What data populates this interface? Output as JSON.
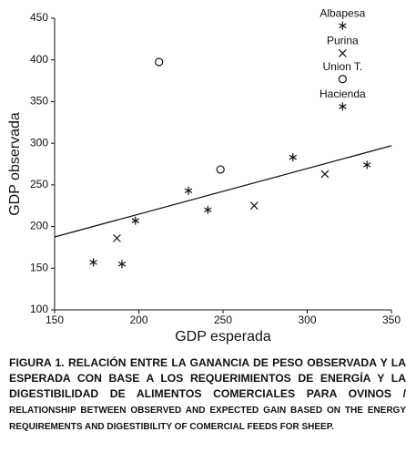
{
  "chart_data": {
    "type": "scatter",
    "xlabel": "GDP esperada",
    "ylabel": "GDP observada",
    "xlim": [
      150,
      350
    ],
    "xticks": [
      150,
      200,
      250,
      300,
      350
    ],
    "ylim": [
      100,
      450
    ],
    "yticks": [
      100,
      150,
      200,
      250,
      300,
      350,
      400,
      450
    ],
    "color": "#111111",
    "series": [
      {
        "marker": "asterisk",
        "x": [
          173,
          190,
          198,
          229.5,
          241,
          291.5,
          335.5,
          321,
          321
        ],
        "values": [
          157,
          155,
          207,
          243,
          220,
          283,
          274,
          441,
          344
        ],
        "point_labels": [
          null,
          null,
          null,
          null,
          null,
          null,
          null,
          "Albapesa",
          "Hacienda"
        ]
      },
      {
        "marker": "cross",
        "x": [
          187,
          268.5,
          310.5,
          321
        ],
        "values": [
          186,
          225,
          263,
          408
        ],
        "point_labels": [
          null,
          null,
          null,
          "Purina"
        ]
      },
      {
        "marker": "circle",
        "x": [
          248.5,
          212,
          321
        ],
        "values": [
          268.5,
          397.5,
          377
        ],
        "point_labels": [
          null,
          null,
          "Union T."
        ]
      }
    ],
    "trendline": {
      "x": [
        150,
        350
      ],
      "values": [
        187.5,
        297
      ]
    }
  },
  "caption": {
    "main": "FIGURA 1. RELACIÓN ENTRE LA GANANCIA DE PESO OBSERVADA Y LA ESPERADA CON BASE A LOS REQUERIMIENTOS DE ENERGÍA Y LA DIGESTIBILIDAD DE ALIMENTOS COMERCIALES PARA OVINOS /",
    "english": "RELATIONSHIP BETWEEN OBSERVED AND EXPECTED GAIN BASED ON THE ENERGY REQUIREMENTS AND DIGESTIBILITY OF COMERCIAL FEEDS FOR SHEEP."
  }
}
